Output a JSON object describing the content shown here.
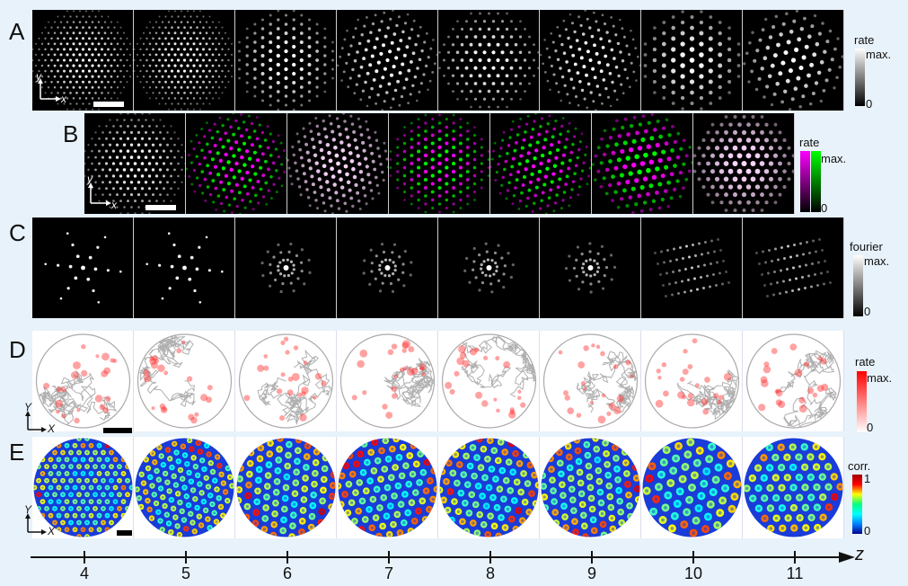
{
  "panels": {
    "A": {
      "label": "A",
      "colorbar": {
        "title": "rate",
        "max": "max.",
        "min": "0"
      },
      "axes": {
        "x": "x",
        "y": "y"
      }
    },
    "B": {
      "label": "B",
      "colorbar": {
        "title": "rate",
        "max": "max.",
        "min": "0"
      },
      "axes": {
        "x": "x",
        "y": "y"
      }
    },
    "C": {
      "label": "C",
      "colorbar": {
        "title": "fourier",
        "max": "max.",
        "min": "0"
      }
    },
    "D": {
      "label": "D",
      "colorbar": {
        "title": "rate",
        "max": "max.",
        "min": "0"
      },
      "axes": {
        "x": "X",
        "y": "Y"
      }
    },
    "E": {
      "label": "E",
      "colorbar": {
        "title": "corr.",
        "max": "1",
        "min": "0"
      },
      "axes": {
        "x": "X",
        "y": "Y"
      }
    }
  },
  "z_axis": {
    "label": "z",
    "ticks": [
      "4",
      "5",
      "6",
      "7",
      "8",
      "9",
      "10",
      "11"
    ]
  },
  "colors": {
    "background": "#e8f2fa",
    "magenta": "#ff00ff",
    "green": "#00ff00",
    "red": "#ff0000"
  }
}
